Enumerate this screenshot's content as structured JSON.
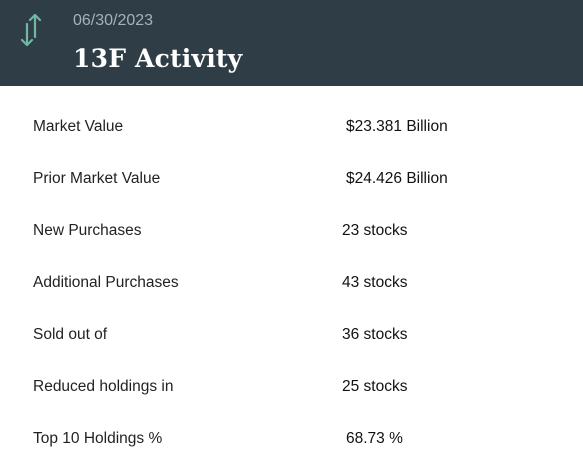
{
  "header": {
    "icon": "up-down-arrows-icon",
    "icon_color": "#6fb8a5",
    "date": "06/30/2023",
    "title": "13F Activity",
    "background": "#2f3e46"
  },
  "rows": [
    {
      "label": "Market Value",
      "value": "$23.381 Billion"
    },
    {
      "label": "Prior Market Value",
      "value": "$24.426 Billion"
    },
    {
      "label": "New Purchases",
      "value": "23 stocks"
    },
    {
      "label": "Additional Purchases",
      "value": "43 stocks"
    },
    {
      "label": "Sold out of",
      "value": "36 stocks"
    },
    {
      "label": "Reduced holdings in",
      "value": "25 stocks"
    },
    {
      "label": "Top 10 Holdings %",
      "value": "68.73 %"
    }
  ]
}
